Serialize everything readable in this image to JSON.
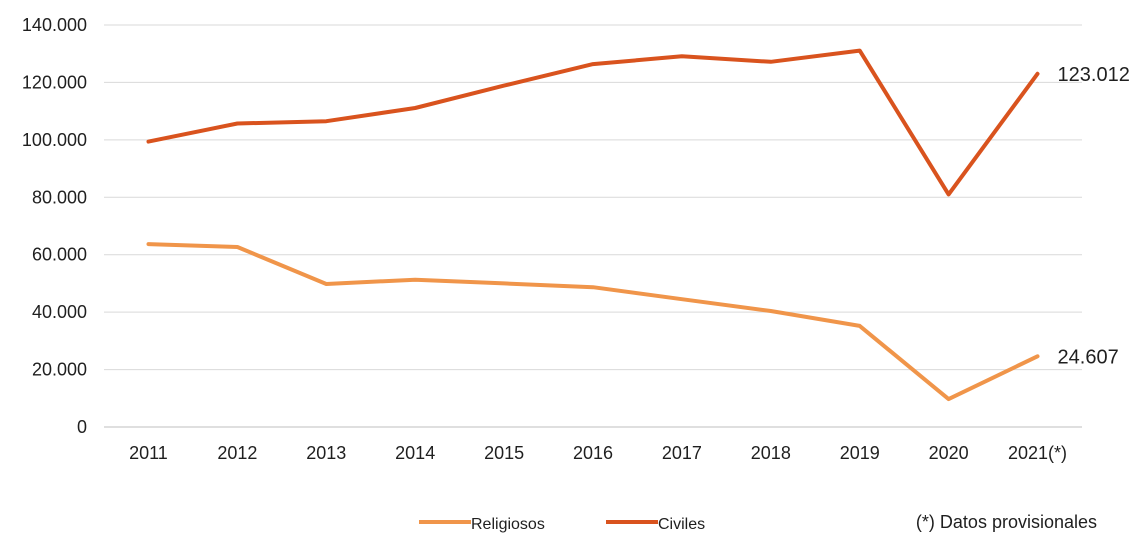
{
  "chart_data": {
    "type": "line",
    "categories": [
      "2011",
      "2012",
      "2013",
      "2014",
      "2015",
      "2016",
      "2017",
      "2018",
      "2019",
      "2020",
      "2021(*)"
    ],
    "series": [
      {
        "name": "Religiosos",
        "color": "#F0954A",
        "values": [
          63700,
          62700,
          49800,
          51300,
          50000,
          48700,
          44500,
          40400,
          35200,
          9700,
          24607
        ],
        "end_label": "24.607"
      },
      {
        "name": "Civiles",
        "color": "#D9531E",
        "values": [
          99400,
          105700,
          106500,
          111100,
          118900,
          126400,
          129100,
          127200,
          131100,
          81000,
          123012
        ],
        "end_label": "123.012"
      }
    ],
    "y_ticks": [
      "0",
      "20.000",
      "40.000",
      "60.000",
      "80.000",
      "100.000",
      "120.000",
      "140.000"
    ],
    "ylim": [
      0,
      140000
    ],
    "grid": true,
    "legend_position": "bottom",
    "note": "(*) Datos provisionales"
  }
}
